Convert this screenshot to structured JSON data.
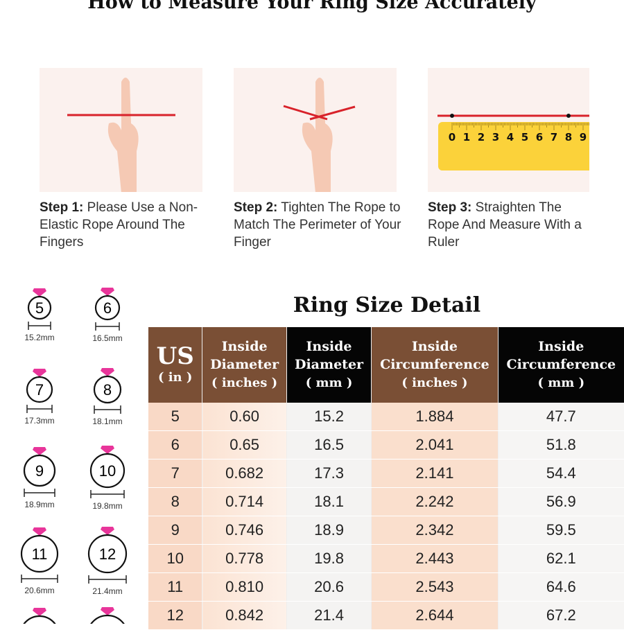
{
  "title": "How to Measure Your Ring Size Accurately",
  "steps": [
    {
      "label": "Step 1:",
      "text": "Please Use a Non-Elastic Rope Around The Fingers"
    },
    {
      "label": "Step 2:",
      "text": "Tighten The Rope to Match The Perimeter of Your Finger"
    },
    {
      "label": "Step 3:",
      "text": "Straighten The Rope And Measure With a Ruler"
    }
  ],
  "ruler_numbers": [
    "0",
    "1",
    "2",
    "3",
    "4",
    "5",
    "6",
    "7",
    "8",
    "9"
  ],
  "colors": {
    "rope": "#d8222a",
    "ruler": "#fbd23a",
    "gem": "#e8359a",
    "header_brown": "#7a4f35",
    "header_black": "#050505",
    "panel_bg": "#fbf1ee"
  },
  "ring_icons": [
    {
      "size": "5",
      "diameter": "15.2mm"
    },
    {
      "size": "6",
      "diameter": "16.5mm"
    },
    {
      "size": "7",
      "diameter": "17.3mm"
    },
    {
      "size": "8",
      "diameter": "18.1mm"
    },
    {
      "size": "9",
      "diameter": "18.9mm"
    },
    {
      "size": "10",
      "diameter": "19.8mm"
    },
    {
      "size": "11",
      "diameter": "20.6mm"
    },
    {
      "size": "12",
      "diameter": "21.4mm"
    },
    {
      "size": "",
      "diameter": ""
    },
    {
      "size": "",
      "diameter": ""
    }
  ],
  "detail_title": "Ring Size Detail",
  "table": {
    "headers": [
      {
        "main": "US",
        "sub": "( in )"
      },
      {
        "main": "Inside Diameter",
        "sub": "( inches )"
      },
      {
        "main": "Inside Diameter",
        "sub": "( mm )"
      },
      {
        "main": "Inside Circumference",
        "sub": "( inches )"
      },
      {
        "main": "Inside Circumference",
        "sub": "( mm )"
      }
    ],
    "rows": [
      [
        "5",
        "0.60",
        "15.2",
        "1.884",
        "47.7"
      ],
      [
        "6",
        "0.65",
        "16.5",
        "2.041",
        "51.8"
      ],
      [
        "7",
        "0.682",
        "17.3",
        "2.141",
        "54.4"
      ],
      [
        "8",
        "0.714",
        "18.1",
        "2.242",
        "56.9"
      ],
      [
        "9",
        "0.746",
        "18.9",
        "2.342",
        "59.5"
      ],
      [
        "10",
        "0.778",
        "19.8",
        "2.443",
        "62.1"
      ],
      [
        "11",
        "0.810",
        "20.6",
        "2.543",
        "64.6"
      ],
      [
        "12",
        "0.842",
        "21.4",
        "2.644",
        "67.2"
      ]
    ]
  }
}
